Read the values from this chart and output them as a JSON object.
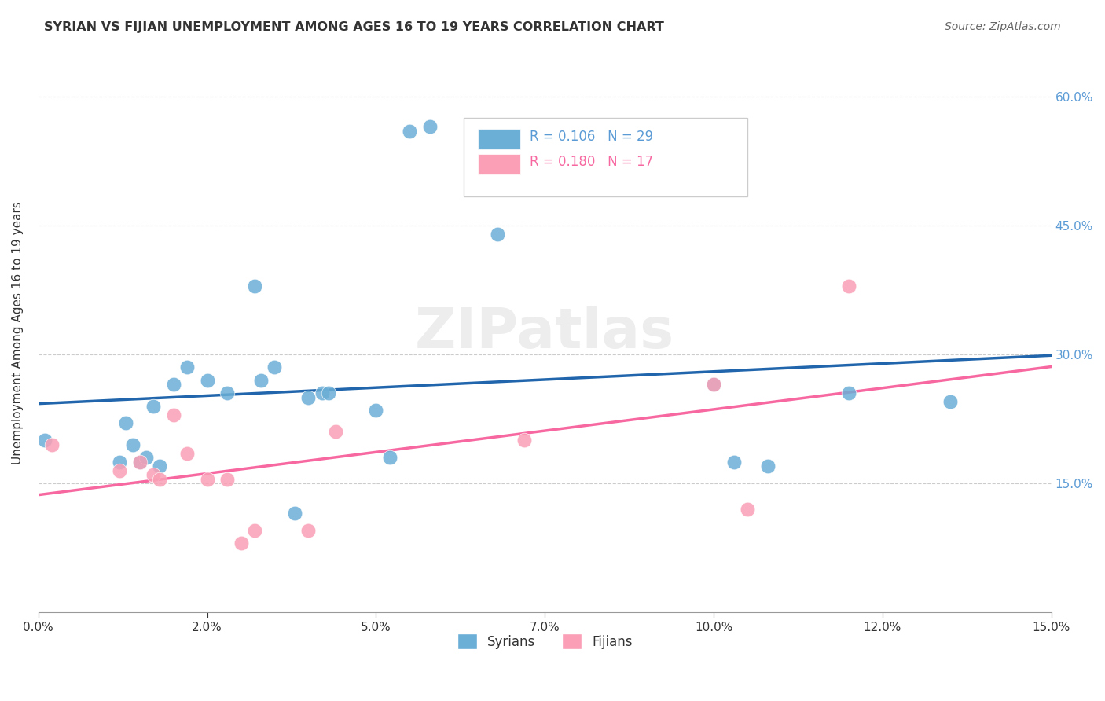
{
  "title": "SYRIAN VS FIJIAN UNEMPLOYMENT AMONG AGES 16 TO 19 YEARS CORRELATION CHART",
  "source": "Source: ZipAtlas.com",
  "ylabel": "Unemployment Among Ages 16 to 19 years",
  "xlabel": "",
  "xlim": [
    0.0,
    0.15
  ],
  "ylim": [
    0.0,
    0.65
  ],
  "xticks": [
    0.0,
    0.025,
    0.05,
    0.075,
    0.1,
    0.125,
    0.15
  ],
  "yticks_left": [
    0.15,
    0.3,
    0.45,
    0.6
  ],
  "yticks_right": [
    0.15,
    0.3,
    0.45,
    0.6
  ],
  "syrian_color": "#6baed6",
  "fijian_color": "#fa9fb5",
  "syrian_R": 0.106,
  "syrian_N": 29,
  "fijian_R": 0.18,
  "fijian_N": 17,
  "syrian_line_color": "#2166ac",
  "fijian_line_color": "#f768a1",
  "watermark": "ZIPatlas",
  "syrians_x": [
    0.001,
    0.012,
    0.013,
    0.014,
    0.015,
    0.016,
    0.017,
    0.018,
    0.02,
    0.022,
    0.025,
    0.028,
    0.032,
    0.033,
    0.035,
    0.038,
    0.04,
    0.042,
    0.043,
    0.05,
    0.052,
    0.055,
    0.058,
    0.068,
    0.1,
    0.103,
    0.108,
    0.12,
    0.135
  ],
  "syrians_y": [
    0.2,
    0.175,
    0.22,
    0.195,
    0.175,
    0.18,
    0.24,
    0.17,
    0.265,
    0.285,
    0.27,
    0.255,
    0.38,
    0.27,
    0.285,
    0.115,
    0.25,
    0.255,
    0.255,
    0.235,
    0.18,
    0.56,
    0.565,
    0.44,
    0.265,
    0.175,
    0.17,
    0.255,
    0.245
  ],
  "fijians_x": [
    0.002,
    0.012,
    0.015,
    0.017,
    0.018,
    0.02,
    0.022,
    0.025,
    0.028,
    0.03,
    0.032,
    0.04,
    0.044,
    0.072,
    0.1,
    0.105,
    0.12
  ],
  "fijians_y": [
    0.195,
    0.165,
    0.175,
    0.16,
    0.155,
    0.23,
    0.185,
    0.155,
    0.155,
    0.08,
    0.095,
    0.095,
    0.21,
    0.2,
    0.265,
    0.12,
    0.38
  ],
  "background_color": "#ffffff",
  "grid_color": "#cccccc"
}
